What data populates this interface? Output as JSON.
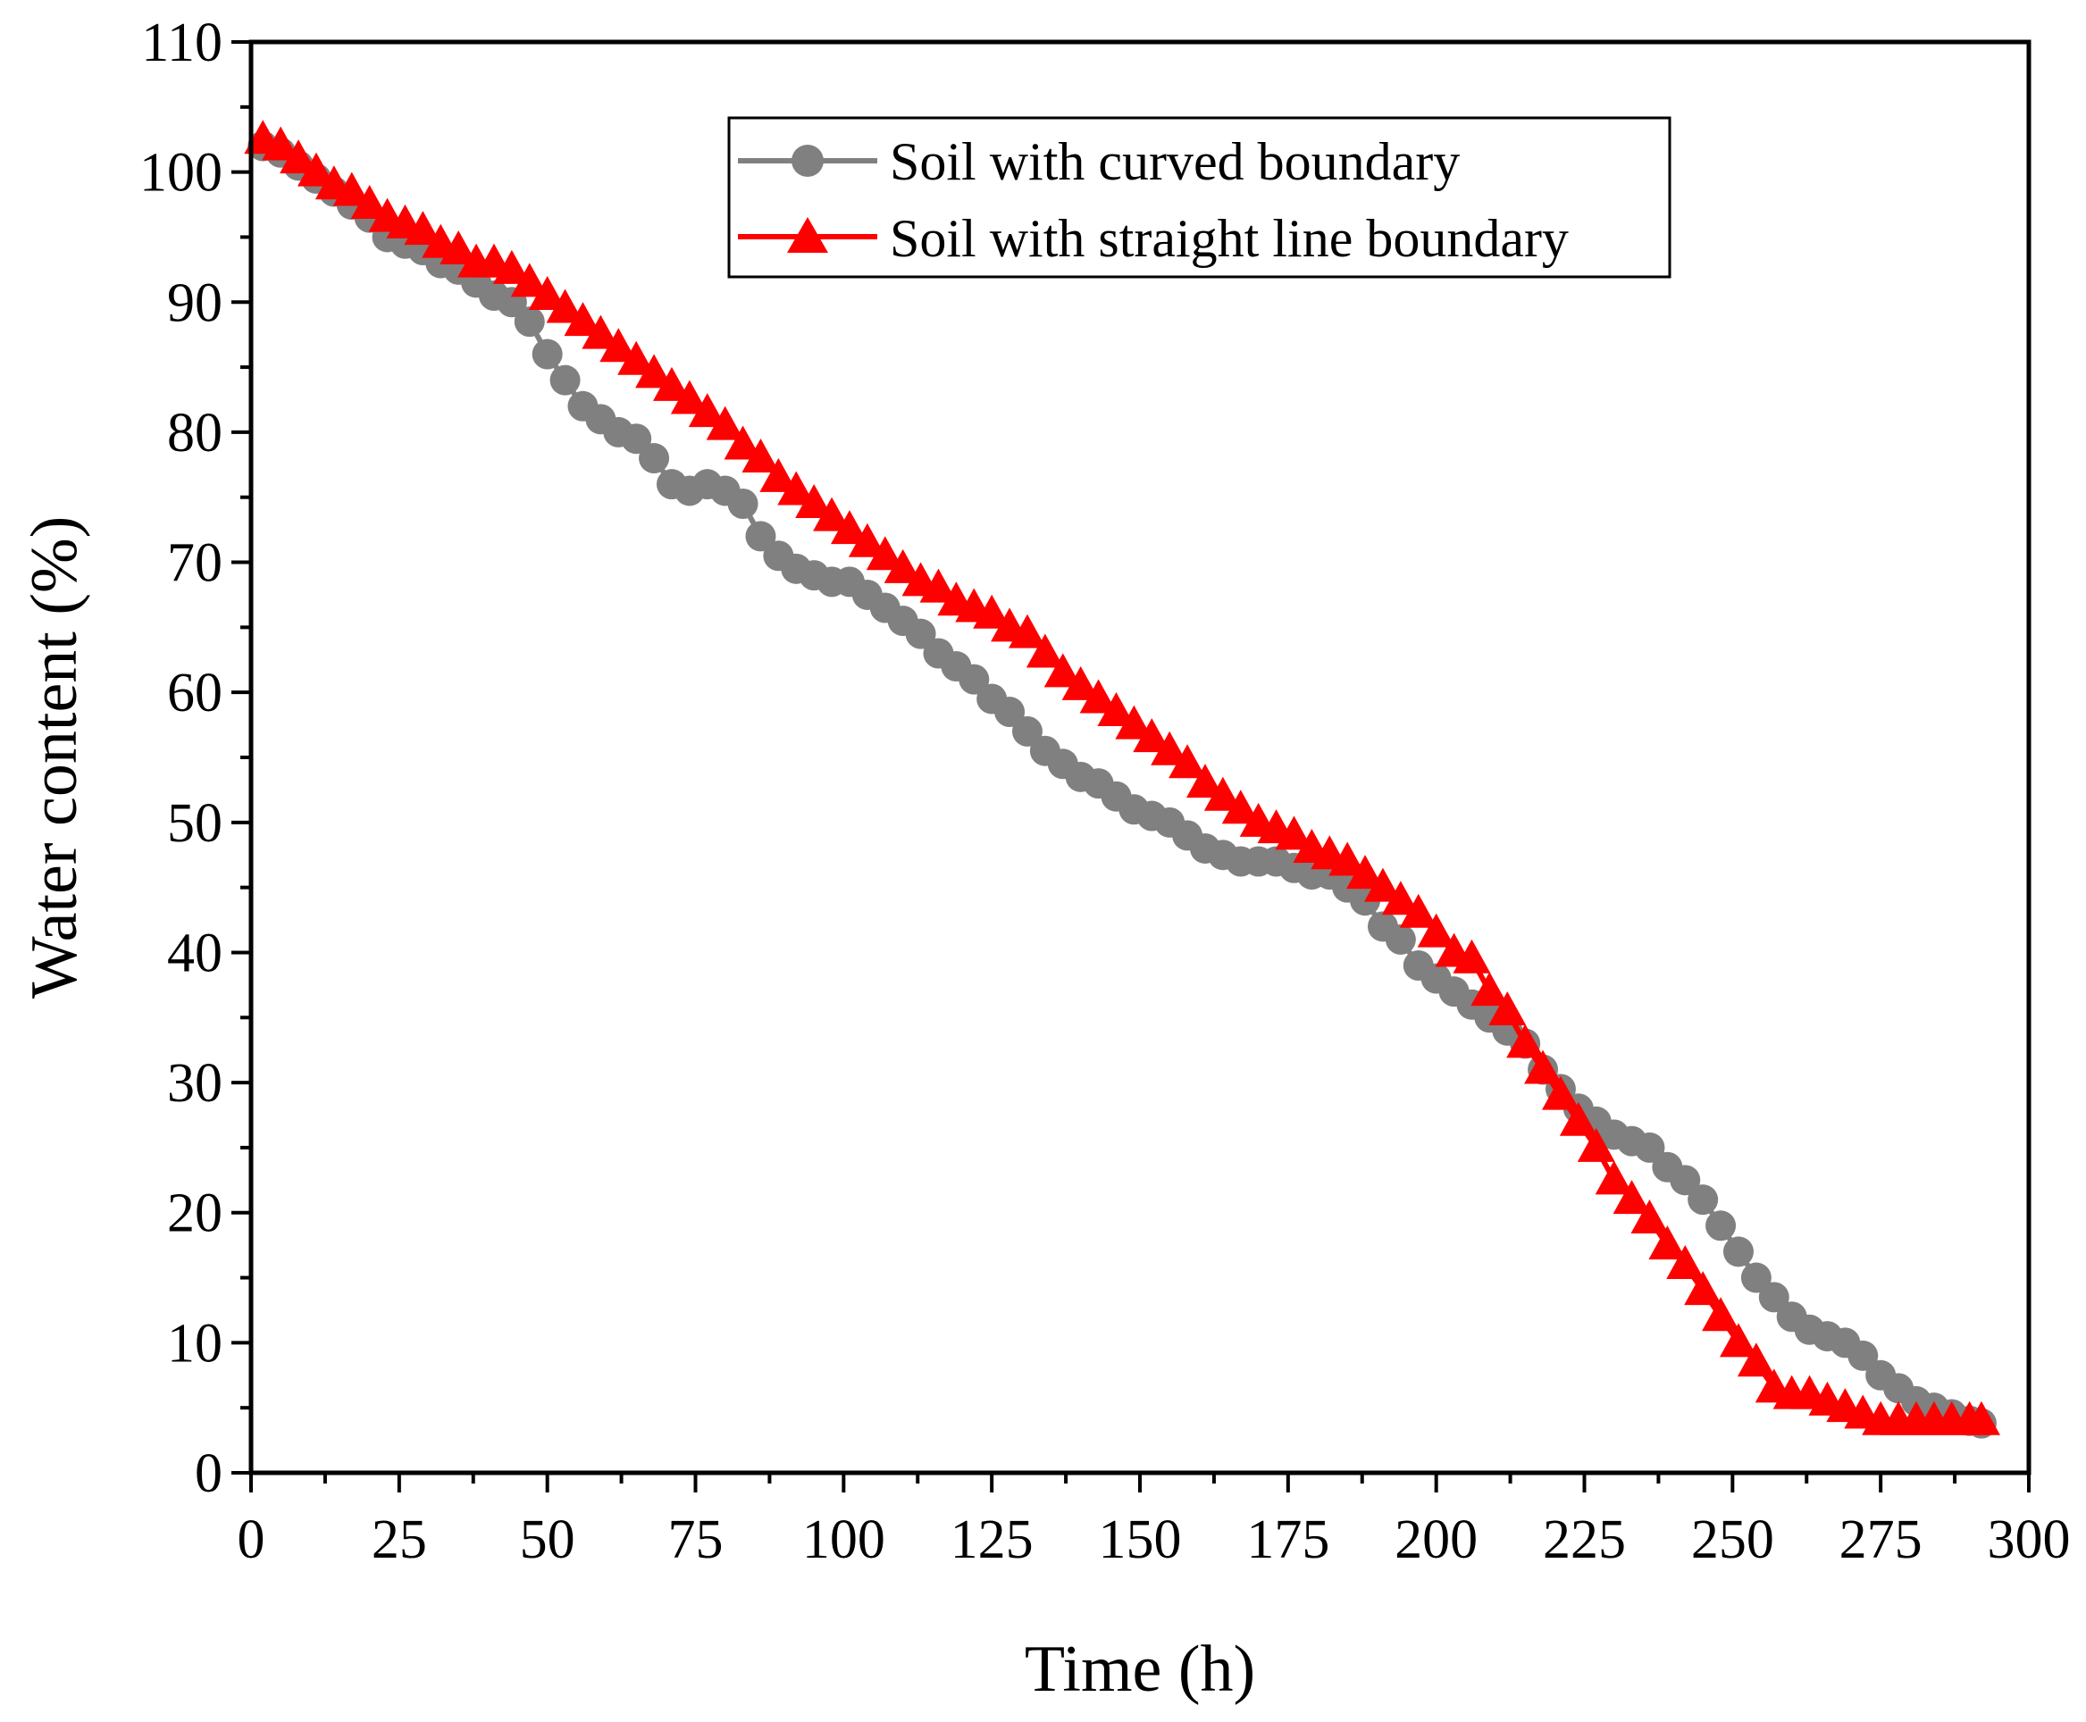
{
  "chart_data": {
    "type": "line",
    "title": "",
    "xlabel": "Time (h)",
    "ylabel": "Water content (%)",
    "xlim": [
      0,
      300
    ],
    "ylim": [
      0,
      110
    ],
    "xticks": [
      0,
      25,
      50,
      75,
      100,
      125,
      150,
      175,
      200,
      225,
      250,
      275,
      300
    ],
    "yticks": [
      0,
      10,
      20,
      30,
      40,
      50,
      60,
      70,
      80,
      90,
      100,
      110
    ],
    "grid": false,
    "legend_position": "top-right",
    "series": [
      {
        "name": "Soil with curved boundary",
        "color": "#808080",
        "marker": "circle",
        "x": [
          2,
          5,
          8,
          11,
          14,
          17,
          20,
          23,
          26,
          29,
          32,
          35,
          38,
          41,
          44,
          47,
          50,
          53,
          56,
          59,
          62,
          65,
          68,
          71,
          74,
          77,
          80,
          83,
          86,
          89,
          92,
          95,
          98,
          101,
          104,
          107,
          110,
          113,
          116,
          119,
          122,
          125,
          128,
          131,
          134,
          137,
          140,
          143,
          146,
          149,
          152,
          155,
          158,
          161,
          164,
          167,
          170,
          173,
          176,
          179,
          182,
          185,
          188,
          191,
          194,
          197,
          200,
          203,
          206,
          209,
          212,
          215,
          218,
          221,
          224,
          227,
          230,
          233,
          236,
          239,
          242,
          245,
          248,
          251,
          254,
          257,
          260,
          263,
          266,
          269,
          272,
          275,
          278,
          281,
          284,
          287,
          290,
          292
        ],
        "y": [
          102,
          101.5,
          100.5,
          99.5,
          98.5,
          97.5,
          96.5,
          95,
          94.5,
          94,
          93,
          92.5,
          91.5,
          90.5,
          90,
          88.5,
          86,
          84,
          82,
          81,
          80,
          79.5,
          78,
          76,
          75.5,
          76,
          75.5,
          74.5,
          72,
          70.5,
          69.5,
          69,
          68.5,
          68.5,
          67.5,
          66.5,
          65.5,
          64.5,
          63,
          62,
          61,
          59.5,
          58.5,
          57,
          55.5,
          54.5,
          53.5,
          53,
          52,
          51,
          50.5,
          50,
          49,
          48,
          47.5,
          47,
          47,
          47,
          46.5,
          46,
          46,
          45,
          44,
          42,
          41,
          39,
          38,
          37,
          36,
          35,
          34,
          33,
          31,
          29.5,
          28,
          27,
          26,
          25.5,
          25,
          23.5,
          22.5,
          21,
          19,
          17,
          15,
          13.5,
          12,
          11,
          10.5,
          10,
          9,
          7.5,
          6.5,
          5.5,
          5,
          4.5,
          4,
          3.8
        ]
      },
      {
        "name": "Soil with straight line boundary",
        "color": "#ff0000",
        "marker": "triangle",
        "x": [
          2,
          5,
          8,
          11,
          14,
          17,
          20,
          23,
          26,
          29,
          32,
          35,
          38,
          41,
          44,
          47,
          50,
          53,
          56,
          59,
          62,
          65,
          68,
          71,
          74,
          77,
          80,
          83,
          86,
          89,
          92,
          95,
          98,
          101,
          104,
          107,
          110,
          113,
          116,
          119,
          122,
          125,
          128,
          131,
          134,
          137,
          140,
          143,
          146,
          149,
          152,
          155,
          158,
          161,
          164,
          167,
          170,
          173,
          176,
          179,
          182,
          185,
          188,
          191,
          194,
          197,
          200,
          203,
          206,
          209,
          212,
          215,
          218,
          221,
          224,
          227,
          230,
          233,
          236,
          239,
          242,
          245,
          248,
          251,
          254,
          257,
          260,
          263,
          266,
          269,
          272,
          275,
          278,
          281,
          284,
          287,
          290,
          292
        ],
        "y": [
          102.5,
          102,
          101,
          100,
          99,
          98.5,
          97.5,
          96.5,
          96,
          95.5,
          94.5,
          94,
          93,
          93,
          92.5,
          91.5,
          90.5,
          89.5,
          88.5,
          87.5,
          86.5,
          85.5,
          84.5,
          83.5,
          82.5,
          81.5,
          80.5,
          79,
          78,
          76.5,
          75.5,
          74.5,
          73.5,
          72.5,
          71.5,
          70.5,
          69.5,
          68.5,
          68,
          67,
          66.5,
          66,
          65,
          64.5,
          63,
          61.5,
          60.5,
          59.5,
          58.5,
          57.5,
          56.5,
          55.5,
          54.5,
          53,
          52,
          51,
          50,
          49.5,
          49,
          48,
          47.5,
          47,
          46,
          45,
          44,
          43,
          41.5,
          40,
          39.5,
          37,
          35.5,
          33,
          31,
          29,
          27,
          25,
          22.5,
          21,
          19.5,
          17.5,
          16,
          14,
          12,
          10,
          8.5,
          6.5,
          6,
          6,
          5.5,
          5,
          4.5,
          4,
          4,
          4,
          4,
          4,
          4,
          4
        ]
      }
    ]
  }
}
